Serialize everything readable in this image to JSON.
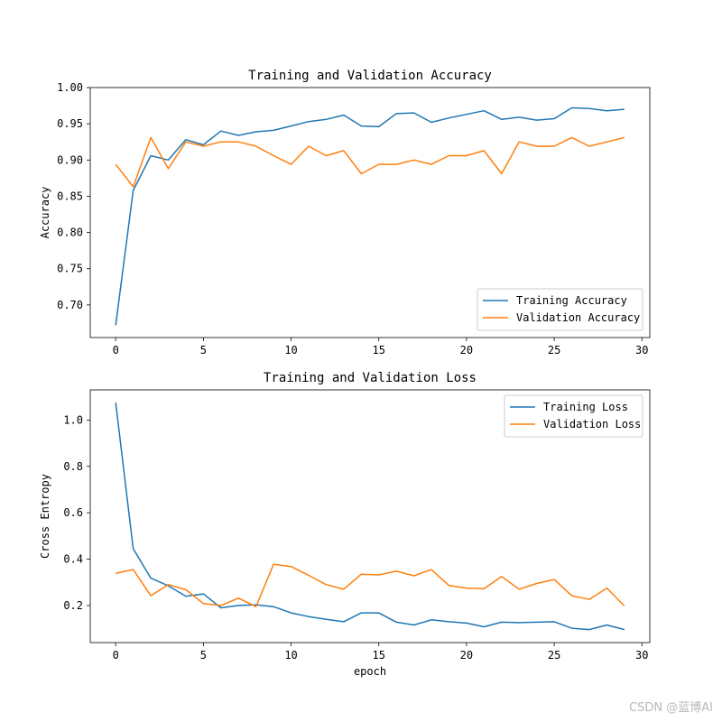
{
  "colors": {
    "training": "#1f77b4",
    "validation": "#ff7f0e",
    "axis": "#000000",
    "legend_border": "#cccccc"
  },
  "watermark": "CSDN @蓝博AI",
  "chart_data": [
    {
      "type": "line",
      "title": "Training and Validation Accuracy",
      "xlabel": "",
      "ylabel": "Accuracy",
      "xlim": [
        -1.45,
        30.45
      ],
      "ylim": [
        0.655,
        1.0
      ],
      "xticks": [
        0,
        5,
        10,
        15,
        20,
        25,
        30
      ],
      "yticks": [
        0.7,
        0.75,
        0.8,
        0.85,
        0.9,
        0.95,
        1.0
      ],
      "ytick_labels": [
        "0.70",
        "0.75",
        "0.80",
        "0.85",
        "0.90",
        "0.95",
        "1.00"
      ],
      "grid": false,
      "legend_loc": "lower-right",
      "series": [
        {
          "name": "Training Accuracy",
          "color_key": "training",
          "x": [
            0,
            1,
            2,
            3,
            4,
            5,
            6,
            7,
            8,
            9,
            10,
            11,
            12,
            13,
            14,
            15,
            16,
            17,
            18,
            19,
            20,
            21,
            22,
            23,
            24,
            25,
            26,
            27,
            28,
            29
          ],
          "y": [
            0.672,
            0.858,
            0.906,
            0.9,
            0.928,
            0.921,
            0.94,
            0.934,
            0.939,
            0.941,
            0.947,
            0.953,
            0.956,
            0.962,
            0.947,
            0.946,
            0.964,
            0.965,
            0.952,
            0.958,
            0.963,
            0.968,
            0.956,
            0.959,
            0.955,
            0.957,
            0.972,
            0.971,
            0.968,
            0.97
          ]
        },
        {
          "name": "Validation Accuracy",
          "color_key": "validation",
          "x": [
            0,
            1,
            2,
            3,
            4,
            5,
            6,
            7,
            8,
            9,
            10,
            11,
            12,
            13,
            14,
            15,
            16,
            17,
            18,
            19,
            20,
            21,
            22,
            23,
            24,
            25,
            26,
            27,
            28,
            29
          ],
          "y": [
            0.894,
            0.863,
            0.931,
            0.888,
            0.925,
            0.919,
            0.925,
            0.925,
            0.919,
            0.906,
            0.894,
            0.919,
            0.906,
            0.913,
            0.881,
            0.894,
            0.894,
            0.9,
            0.894,
            0.906,
            0.906,
            0.913,
            0.881,
            0.925,
            0.919,
            0.919,
            0.931,
            0.919,
            0.925,
            0.931
          ]
        }
      ]
    },
    {
      "type": "line",
      "title": "Training and Validation Loss",
      "xlabel": "epoch",
      "ylabel": "Cross Entropy",
      "xlim": [
        -1.45,
        30.45
      ],
      "ylim": [
        0.04,
        1.13
      ],
      "xticks": [
        0,
        5,
        10,
        15,
        20,
        25,
        30
      ],
      "yticks": [
        0.2,
        0.4,
        0.6,
        0.8,
        1.0
      ],
      "ytick_labels": [
        "0.2",
        "0.4",
        "0.6",
        "0.8",
        "1.0"
      ],
      "grid": false,
      "legend_loc": "upper-right",
      "series": [
        {
          "name": "Training Loss",
          "color_key": "training",
          "x": [
            0,
            1,
            2,
            3,
            4,
            5,
            6,
            7,
            8,
            9,
            10,
            11,
            12,
            13,
            14,
            15,
            16,
            17,
            18,
            19,
            20,
            21,
            22,
            23,
            24,
            25,
            26,
            27,
            28,
            29
          ],
          "y": [
            1.075,
            0.445,
            0.318,
            0.285,
            0.24,
            0.25,
            0.19,
            0.2,
            0.203,
            0.195,
            0.168,
            0.152,
            0.14,
            0.13,
            0.168,
            0.168,
            0.128,
            0.116,
            0.138,
            0.13,
            0.124,
            0.108,
            0.128,
            0.126,
            0.128,
            0.13,
            0.102,
            0.096,
            0.116,
            0.096
          ]
        },
        {
          "name": "Validation Loss",
          "color_key": "validation",
          "x": [
            0,
            1,
            2,
            3,
            4,
            5,
            6,
            7,
            8,
            9,
            10,
            11,
            12,
            13,
            14,
            15,
            16,
            17,
            18,
            19,
            20,
            21,
            22,
            23,
            24,
            25,
            26,
            27,
            28,
            29
          ],
          "y": [
            0.338,
            0.355,
            0.242,
            0.29,
            0.268,
            0.208,
            0.2,
            0.232,
            0.195,
            0.378,
            0.368,
            0.33,
            0.29,
            0.27,
            0.335,
            0.332,
            0.348,
            0.328,
            0.355,
            0.286,
            0.275,
            0.272,
            0.325,
            0.27,
            0.295,
            0.312,
            0.242,
            0.226,
            0.275,
            0.198
          ]
        }
      ]
    }
  ]
}
